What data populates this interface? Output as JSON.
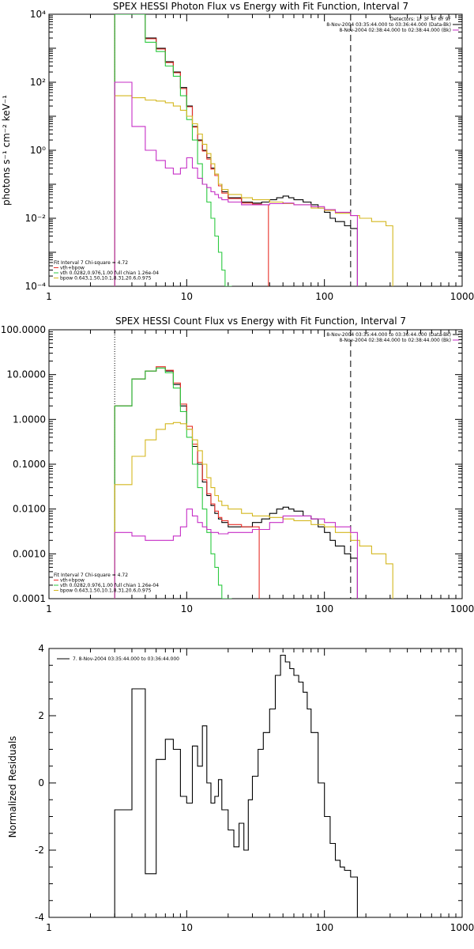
{
  "colors": {
    "data": "#000000",
    "total": "#e8302a",
    "vth": "#2cc940",
    "bpow": "#d4b71f",
    "bkg": "#c62ec6",
    "axes": "#000000",
    "grid_bg": "#ffffff"
  },
  "chart_data": [
    {
      "type": "line",
      "title": "SPEX HESSI Photon Flux vs Energy with Fit Function, Interval 7",
      "xlabel": "",
      "ylabel": "photons s⁻¹ cm⁻² keV⁻¹",
      "xscale": "log",
      "yscale": "log",
      "xlim": [
        1,
        1000
      ],
      "ylim": [
        0.0001,
        10000
      ],
      "xticks": [
        "1",
        "10",
        "100",
        "1000"
      ],
      "yticks": [
        "10⁻⁴",
        "10⁻²",
        "10⁰",
        "10²",
        "10⁴"
      ],
      "legend_top": [
        "Detectors: 1F 3F 4F 6F 9F",
        "8-Nov-2004 03:35:44.000 to 03:36:44.000 (Data-Bk)",
        "8-Nov-2004 02:38:44.000 to 02:38:44.000 (Bk)"
      ],
      "legend_bottom": [
        "Fit Interval 7   Chi-square = 4.72",
        "vth+bpow",
        "vth 0.0282,0.976,1.00  full chian 1.26e-04",
        "bpow 0.643,1.50,10.1,8.31,20.6,0.975"
      ],
      "vlines": [
        3.0,
        155
      ],
      "series": [
        {
          "label": "Data-Bk",
          "color": "black",
          "x": [
            3.0,
            4.0,
            5.0,
            6.0,
            7.0,
            8.0,
            9.0,
            10.0,
            11.0,
            12.0,
            13.0,
            14.0,
            15.0,
            16.0,
            17.0,
            18.0,
            20.0,
            25.0,
            30.0,
            35.0,
            40.0,
            45.0,
            50.0,
            55.0,
            60.0,
            70.0,
            80.0,
            90.0,
            100.0,
            110.0,
            120.0,
            140.0,
            155.0
          ],
          "y": [
            10000,
            10000,
            2000,
            1000,
            400,
            200,
            70,
            20,
            5,
            2,
            1,
            0.6,
            0.3,
            0.2,
            0.1,
            0.06,
            0.04,
            0.03,
            0.028,
            0.03,
            0.035,
            0.04,
            0.045,
            0.04,
            0.035,
            0.03,
            0.025,
            0.02,
            0.015,
            0.01,
            0.008,
            0.006,
            0.005
          ]
        },
        {
          "label": "vth+bpow",
          "color": "red",
          "x": [
            3.0,
            4.0,
            5.0,
            6.0,
            7.0,
            8.0,
            9.0,
            10.0,
            11.0,
            12.0,
            13.0,
            14.0,
            15.0,
            16.0,
            17.0,
            18.0,
            20.0,
            25.0,
            30.0,
            35.0
          ],
          "y": [
            10000,
            10000,
            1900,
            950,
            380,
            190,
            65,
            19,
            4.8,
            1.9,
            0.95,
            0.55,
            0.28,
            0.18,
            0.09,
            0.055,
            0.038,
            0.028,
            0.026,
            0.025
          ]
        },
        {
          "label": "vth",
          "color": "green",
          "x": [
            3.0,
            4.0,
            5.0,
            6.0,
            7.0,
            8.0,
            9.0,
            10.0,
            11.0,
            12.0,
            13.0,
            14.0,
            15.0,
            16.0,
            17.0,
            18.0,
            19.0
          ],
          "y": [
            10000,
            10000,
            1500,
            800,
            300,
            150,
            40,
            8,
            2,
            0.4,
            0.1,
            0.03,
            0.01,
            0.003,
            0.001,
            0.0003,
            0.0001
          ]
        },
        {
          "label": "bpow",
          "color": "yellow",
          "x": [
            3.0,
            4.0,
            5.0,
            6.0,
            7.0,
            8.0,
            9.0,
            10.0,
            11.0,
            12.0,
            13.0,
            14.0,
            15.0,
            16.0,
            17.0,
            18.0,
            20.0,
            25.0,
            30.0,
            40.0,
            50.0,
            60.0,
            80.0,
            100.0,
            120.0,
            155.0,
            180.0,
            220.0,
            280.0
          ],
          "y": [
            40,
            35,
            30,
            28,
            25,
            20,
            15,
            10,
            6,
            3,
            1.5,
            0.8,
            0.4,
            0.2,
            0.1,
            0.07,
            0.05,
            0.04,
            0.035,
            0.03,
            0.027,
            0.025,
            0.02,
            0.017,
            0.014,
            0.012,
            0.01,
            0.008,
            0.006
          ]
        },
        {
          "label": "Bk",
          "color": "magenta",
          "x": [
            3.0,
            4.0,
            5.0,
            6.0,
            7.0,
            8.0,
            9.0,
            10.0,
            11.0,
            12.0,
            13.0,
            14.0,
            15.0,
            16.0,
            17.0,
            18.0,
            20.0,
            25.0,
            30.0,
            40.0,
            50.0,
            60.0,
            80.0,
            100.0,
            120.0,
            155.0
          ],
          "y": [
            100,
            5,
            1,
            0.5,
            0.3,
            0.2,
            0.3,
            0.6,
            0.3,
            0.15,
            0.1,
            0.08,
            0.06,
            0.05,
            0.04,
            0.035,
            0.03,
            0.025,
            0.025,
            0.027,
            0.028,
            0.025,
            0.022,
            0.018,
            0.015,
            0.012
          ]
        }
      ]
    },
    {
      "type": "line",
      "title": "SPEX HESSI Count Flux vs Energy with Fit Function, Interval 7",
      "xlabel": "",
      "ylabel": "",
      "xscale": "log",
      "yscale": "log",
      "xlim": [
        1,
        1000
      ],
      "ylim": [
        0.0001,
        100
      ],
      "xticks": [
        "1",
        "10",
        "100",
        "1000"
      ],
      "yticks": [
        "0.0001",
        "0.0010",
        "0.0100",
        "0.1000",
        "1.0000",
        "10.0000",
        "100.0000"
      ],
      "legend_top": [
        "8-Nov-2004 03:35:44.000 to 03:36:44.000 (Data-Bk)",
        "8-Nov-2004 02:38:44.000 to 02:38:44.000 (Bk)"
      ],
      "legend_bottom": [
        "Fit Interval 7   Chi-square = 4.72",
        "vth+bpow",
        "vth 0.0282,0.976,1.00  full chian 1.26e-04",
        "bpow 0.643,1.50,10.1,8.31,20.6,0.975"
      ],
      "vlines": [
        3.0,
        155
      ],
      "series": [
        {
          "label": "Data-Bk",
          "color": "black",
          "x": [
            3.0,
            4.0,
            5.0,
            6.0,
            7.0,
            8.0,
            9.0,
            10.0,
            11.0,
            12.0,
            13.0,
            14.0,
            15.0,
            16.0,
            17.0,
            18.0,
            20.0,
            25.0,
            30.0,
            35.0,
            40.0,
            45.0,
            50.0,
            55.0,
            60.0,
            70.0,
            80.0,
            90.0,
            100.0,
            110.0,
            120.0,
            140.0,
            155.0
          ],
          "y": [
            2,
            8,
            12,
            14,
            12,
            6,
            2,
            0.6,
            0.25,
            0.1,
            0.04,
            0.02,
            0.012,
            0.008,
            0.006,
            0.005,
            0.004,
            0.004,
            0.005,
            0.006,
            0.008,
            0.01,
            0.011,
            0.01,
            0.009,
            0.007,
            0.006,
            0.004,
            0.003,
            0.002,
            0.0015,
            0.001,
            0.0008
          ]
        },
        {
          "label": "vth+bpow",
          "color": "red",
          "x": [
            3.0,
            4.0,
            5.0,
            6.0,
            7.0,
            8.0,
            9.0,
            10.0,
            11.0,
            12.0,
            13.0,
            14.0,
            15.0,
            16.0,
            17.0,
            18.0,
            20.0,
            25.0,
            30.0
          ],
          "y": [
            2,
            8,
            12,
            15,
            12.5,
            6.5,
            2.2,
            0.7,
            0.28,
            0.11,
            0.045,
            0.022,
            0.013,
            0.009,
            0.0065,
            0.0055,
            0.0045,
            0.004,
            0.004
          ]
        },
        {
          "label": "vth",
          "color": "green",
          "x": [
            3.0,
            4.0,
            5.0,
            6.0,
            7.0,
            8.0,
            9.0,
            10.0,
            11.0,
            12.0,
            13.0,
            14.0,
            15.0,
            16.0,
            17.0,
            18.0,
            19.0
          ],
          "y": [
            2,
            8,
            12,
            14,
            11,
            5,
            1.5,
            0.4,
            0.1,
            0.03,
            0.01,
            0.003,
            0.001,
            0.0005,
            0.0002,
            0.0001,
            0.0001
          ]
        },
        {
          "label": "bpow",
          "color": "yellow",
          "x": [
            3.0,
            4.0,
            5.0,
            6.0,
            7.0,
            8.0,
            9.0,
            10.0,
            11.0,
            12.0,
            13.0,
            14.0,
            15.0,
            16.0,
            17.0,
            18.0,
            20.0,
            25.0,
            30.0,
            40.0,
            50.0,
            60.0,
            80.0,
            100.0,
            120.0,
            155.0,
            180.0,
            220.0,
            280.0
          ],
          "y": [
            0.035,
            0.15,
            0.35,
            0.6,
            0.8,
            0.85,
            0.8,
            0.6,
            0.35,
            0.2,
            0.1,
            0.05,
            0.03,
            0.02,
            0.015,
            0.012,
            0.01,
            0.008,
            0.007,
            0.0065,
            0.006,
            0.0055,
            0.0045,
            0.004,
            0.003,
            0.002,
            0.0015,
            0.001,
            0.0006
          ]
        },
        {
          "label": "Bk",
          "color": "magenta",
          "x": [
            3.0,
            4.0,
            5.0,
            6.0,
            7.0,
            8.0,
            9.0,
            10.0,
            11.0,
            12.0,
            13.0,
            14.0,
            15.0,
            16.0,
            17.0,
            18.0,
            20.0,
            25.0,
            30.0,
            40.0,
            50.0,
            60.0,
            80.0,
            100.0,
            120.0,
            155.0
          ],
          "y": [
            0.003,
            0.0025,
            0.002,
            0.002,
            0.002,
            0.0025,
            0.004,
            0.01,
            0.007,
            0.005,
            0.004,
            0.0035,
            0.003,
            0.003,
            0.0028,
            0.0028,
            0.003,
            0.003,
            0.0035,
            0.005,
            0.007,
            0.007,
            0.006,
            0.005,
            0.004,
            0.003
          ]
        }
      ]
    },
    {
      "type": "line",
      "title": "",
      "xlabel": "",
      "ylabel": "Normalized Residuals",
      "xscale": "log",
      "yscale": "linear",
      "xlim": [
        1,
        1000
      ],
      "ylim": [
        -4,
        4
      ],
      "xticks": [
        "1",
        "10",
        "100",
        "1000"
      ],
      "yticks": [
        "-4",
        "-2",
        "0",
        "2",
        "4"
      ],
      "legend": [
        "7.  8-Nov-2004 03:35:44.000 to 03:36:44.000"
      ],
      "series": [
        {
          "label": "7.  8-Nov-2004 03:35:44.000 to 03:36:44.000",
          "color": "black",
          "x": [
            3.0,
            4.0,
            5.0,
            6.0,
            7.0,
            8.0,
            9.0,
            10.0,
            11.0,
            12.0,
            13.0,
            14.0,
            15.0,
            16.0,
            17.0,
            18.0,
            20.0,
            22.0,
            24.0,
            26.0,
            28.0,
            30.0,
            33.0,
            36.0,
            40.0,
            44.0,
            48.0,
            52.0,
            56.0,
            60.0,
            65.0,
            70.0,
            75.0,
            80.0,
            90.0,
            100.0,
            110.0,
            120.0,
            130.0,
            140.0,
            155.0
          ],
          "y": [
            -0.8,
            2.8,
            -2.7,
            0.7,
            1.3,
            1.0,
            -0.4,
            -0.6,
            1.1,
            0.5,
            1.7,
            0.0,
            -0.6,
            -0.4,
            0.1,
            -0.8,
            -1.4,
            -1.9,
            -1.2,
            -2.0,
            -0.5,
            0.2,
            1.0,
            1.5,
            2.2,
            3.2,
            3.8,
            3.6,
            3.4,
            3.2,
            3.0,
            2.7,
            2.2,
            1.5,
            0.0,
            -1.0,
            -1.8,
            -2.3,
            -2.5,
            -2.6,
            -2.8
          ]
        }
      ]
    }
  ]
}
